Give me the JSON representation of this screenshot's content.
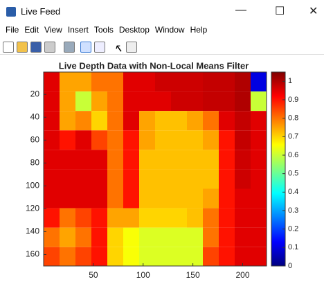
{
  "window": {
    "title": "Live Feed",
    "menu": [
      "File",
      "Edit",
      "View",
      "Insert",
      "Tools",
      "Desktop",
      "Window",
      "Help"
    ]
  },
  "chart_data": {
    "type": "heatmap",
    "title": "Live Depth Data with Non-Local Means Filter",
    "x": [
      8,
      24,
      40,
      56,
      72,
      88,
      104,
      120,
      136,
      152,
      168,
      184,
      200,
      216
    ],
    "y": [
      9,
      26,
      43,
      60,
      77,
      94,
      111,
      128,
      145,
      162
    ],
    "values": [
      [
        0.95,
        0.75,
        0.75,
        0.8,
        0.8,
        0.95,
        0.95,
        0.97,
        0.97,
        0.97,
        0.98,
        0.98,
        1.0,
        0.1
      ],
      [
        0.95,
        0.75,
        0.6,
        0.75,
        0.8,
        0.95,
        0.95,
        0.95,
        0.97,
        0.97,
        0.98,
        0.98,
        1.0,
        0.6
      ],
      [
        0.95,
        0.75,
        0.78,
        0.7,
        0.8,
        0.95,
        0.75,
        0.72,
        0.72,
        0.75,
        0.8,
        0.95,
        0.98,
        0.95
      ],
      [
        0.95,
        0.9,
        0.95,
        0.85,
        0.8,
        0.9,
        0.75,
        0.72,
        0.72,
        0.72,
        0.75,
        0.9,
        0.98,
        0.95
      ],
      [
        0.95,
        0.95,
        0.95,
        0.95,
        0.8,
        0.9,
        0.72,
        0.72,
        0.72,
        0.72,
        0.72,
        0.9,
        0.97,
        0.95
      ],
      [
        0.95,
        0.95,
        0.95,
        0.95,
        0.8,
        0.9,
        0.72,
        0.72,
        0.72,
        0.72,
        0.72,
        0.9,
        0.97,
        0.95
      ],
      [
        0.95,
        0.95,
        0.95,
        0.95,
        0.8,
        0.9,
        0.72,
        0.72,
        0.72,
        0.72,
        0.75,
        0.9,
        0.95,
        0.95
      ],
      [
        0.9,
        0.8,
        0.85,
        0.9,
        0.75,
        0.75,
        0.7,
        0.7,
        0.7,
        0.72,
        0.8,
        0.9,
        0.95,
        0.95
      ],
      [
        0.8,
        0.75,
        0.8,
        0.9,
        0.7,
        0.65,
        0.62,
        0.62,
        0.62,
        0.62,
        0.8,
        0.9,
        0.95,
        0.95
      ],
      [
        0.85,
        0.8,
        0.85,
        0.9,
        0.7,
        0.65,
        0.62,
        0.62,
        0.62,
        0.62,
        0.85,
        0.9,
        0.95,
        0.95
      ]
    ],
    "xlim": [
      0,
      224
    ],
    "ylim": [
      0.5,
      170
    ],
    "xticks": [
      50,
      100,
      150,
      200
    ],
    "yticks": [
      20,
      40,
      60,
      80,
      100,
      120,
      140,
      160
    ],
    "colormap": "jet",
    "clim": [
      0,
      1.05
    ],
    "cticks": [
      0,
      0.1,
      0.2,
      0.3,
      0.4,
      0.5,
      0.6,
      0.7,
      0.8,
      0.9,
      1
    ]
  }
}
